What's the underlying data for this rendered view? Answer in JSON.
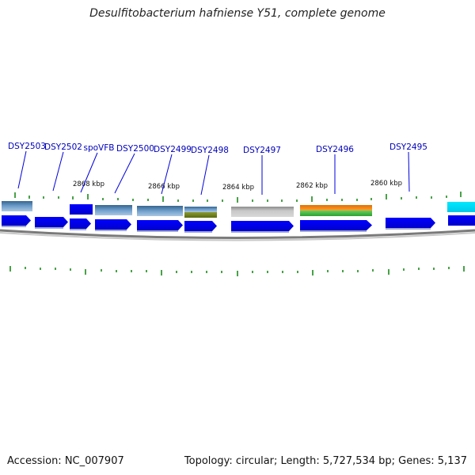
{
  "title": "Desulfitobacterium hafniense Y51, complete genome",
  "footer": {
    "accession": "Accession: NC_007907",
    "topology": "Topology: circular; Length: 5,727,534 bp; Genes: 5,137"
  },
  "colors": {
    "gene_label": "#0000bb",
    "cds_arrow": "#0000ee",
    "tick": "#1a8a1a",
    "backbone": "#808080"
  },
  "kbp_labels": [
    "2868 kbp",
    "2866 kbp",
    "2864 kbp",
    "2862 kbp",
    "2860 kbp"
  ],
  "gene_labels": [
    "DSY2503",
    "DSY2502",
    "spoVFB",
    "DSY2500",
    "DSY2499",
    "DSY2498",
    "DSY2497",
    "DSY2496",
    "DSY2495"
  ]
}
